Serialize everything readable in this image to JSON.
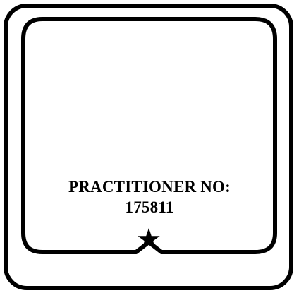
{
  "stamp": {
    "title": "PRACTITIONER NO:",
    "number": "175811",
    "ornament_icon": "star-icon",
    "ink_color": "#000000",
    "paper_color": "#ffffff"
  }
}
